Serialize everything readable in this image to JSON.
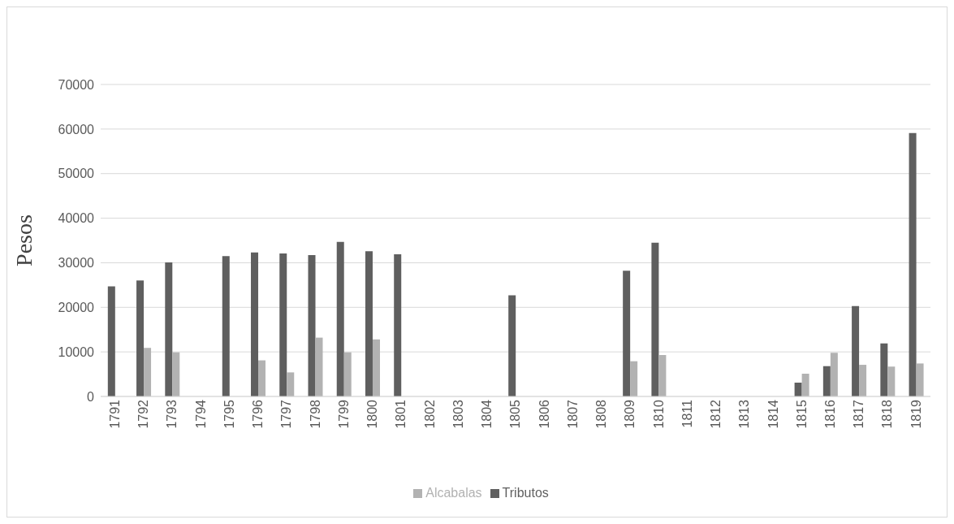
{
  "chart_data": {
    "type": "bar",
    "ylabel": "Pesos",
    "categories": [
      "1791",
      "1792",
      "1793",
      "1794",
      "1795",
      "1796",
      "1797",
      "1798",
      "1799",
      "1800",
      "1801",
      "1802",
      "1803",
      "1804",
      "1805",
      "1806",
      "1807",
      "1808",
      "1809",
      "1810",
      "1811",
      "1812",
      "1813",
      "1814",
      "1815",
      "1816",
      "1817",
      "1818",
      "1819"
    ],
    "series": [
      {
        "name": "Tributos",
        "color": "#5f5f5f",
        "values": [
          24700,
          26000,
          30100,
          null,
          31500,
          32300,
          32100,
          31700,
          34700,
          32600,
          31900,
          null,
          null,
          null,
          22700,
          null,
          null,
          null,
          28200,
          34500,
          null,
          null,
          null,
          null,
          3100,
          6800,
          20300,
          11900,
          59100
        ]
      },
      {
        "name": "Alcabalas",
        "color": "#b2b2b2",
        "values": [
          null,
          10900,
          9900,
          null,
          null,
          8100,
          5400,
          13200,
          9900,
          12800,
          null,
          null,
          null,
          null,
          null,
          null,
          null,
          null,
          7900,
          9300,
          null,
          null,
          null,
          null,
          5100,
          9800,
          7100,
          6700,
          7400
        ]
      }
    ],
    "ylim": [
      0,
      70000
    ],
    "yticks": [
      0,
      10000,
      20000,
      30000,
      40000,
      50000,
      60000,
      70000
    ],
    "grid": "y",
    "legend": "bottom"
  }
}
